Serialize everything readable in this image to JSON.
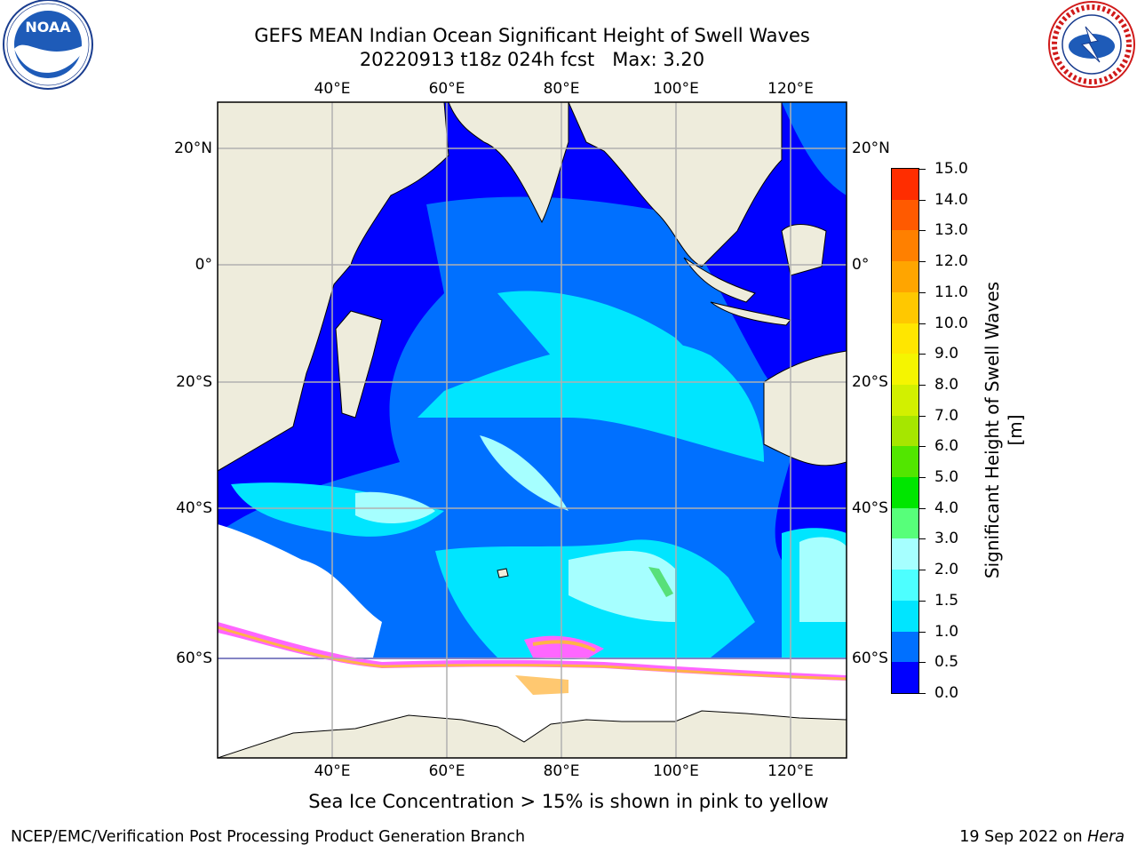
{
  "header": {
    "title_line1": "GEFS MEAN Indian Ocean Significant Height of Swell Waves",
    "title_line2": "20220913 t18z 024h fcst   Max: 3.20"
  },
  "logos": {
    "left": {
      "name": "NOAA",
      "ring_text": "NATIONAL OCEANIC AND ATMOSPHERIC ADMINISTRATION · U.S. DEPARTMENT OF COMMERCE"
    },
    "right": {
      "name": "NATIONAL WEATHER SERVICE"
    }
  },
  "map": {
    "lon_ticks": [
      "40°E",
      "60°E",
      "80°E",
      "100°E",
      "120°E"
    ],
    "lat_ticks_left": [
      "20°N",
      "0°",
      "20°S",
      "40°S",
      "60°S"
    ],
    "lat_ticks_right": [
      "20°N",
      "0°",
      "20°S",
      "40°S",
      "60°S"
    ],
    "colors": {
      "land": "#eeecdc",
      "ocean": "#0000ff",
      "grid": "#b0b0b0"
    }
  },
  "colorbar": {
    "label": "Significant Height of Swell Waves [m]",
    "tick_labels": [
      "0.0",
      "0.5",
      "1.0",
      "1.5",
      "2.0",
      "3.0",
      "4.0",
      "5.0",
      "6.0",
      "7.0",
      "8.0",
      "9.0",
      "10.0",
      "11.0",
      "12.0",
      "13.0",
      "14.0",
      "15.0"
    ],
    "colors": [
      "#0000ff",
      "#0070ff",
      "#00e5ff",
      "#4dffff",
      "#a6ffff",
      "#57ff7a",
      "#00e600",
      "#52e600",
      "#a6e600",
      "#d2f000",
      "#f5f500",
      "#ffe600",
      "#ffc800",
      "#ffa500",
      "#ff8000",
      "#ff5a00",
      "#ff2d00",
      "#ff0000"
    ]
  },
  "footer": {
    "note": "Sea Ice Concentration > 15% is shown in pink to yellow",
    "left": "NCEP/EMC/Verification Post Processing Product Generation Branch",
    "date": "19 Sep 2022 on ",
    "host": "Hera"
  }
}
